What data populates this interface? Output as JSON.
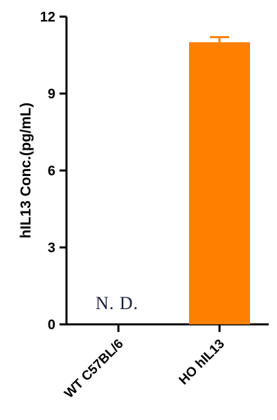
{
  "chart_data": {
    "type": "bar",
    "title": "",
    "xlabel": "",
    "ylabel": "hIL13 Conc.(pg/mL)",
    "ylim": [
      0,
      12
    ],
    "yticks": [
      "0",
      "3",
      "6",
      "9",
      "12"
    ],
    "categories": [
      "WT C57BL/6",
      "HO hIL13"
    ],
    "values": [
      0,
      11.0
    ],
    "errors": [
      null,
      0.2
    ],
    "annotations": [
      {
        "category": "WT C57BL/6",
        "text": "N. D."
      }
    ],
    "bar_color": "#ff8000",
    "grid": false,
    "legend": "none"
  }
}
